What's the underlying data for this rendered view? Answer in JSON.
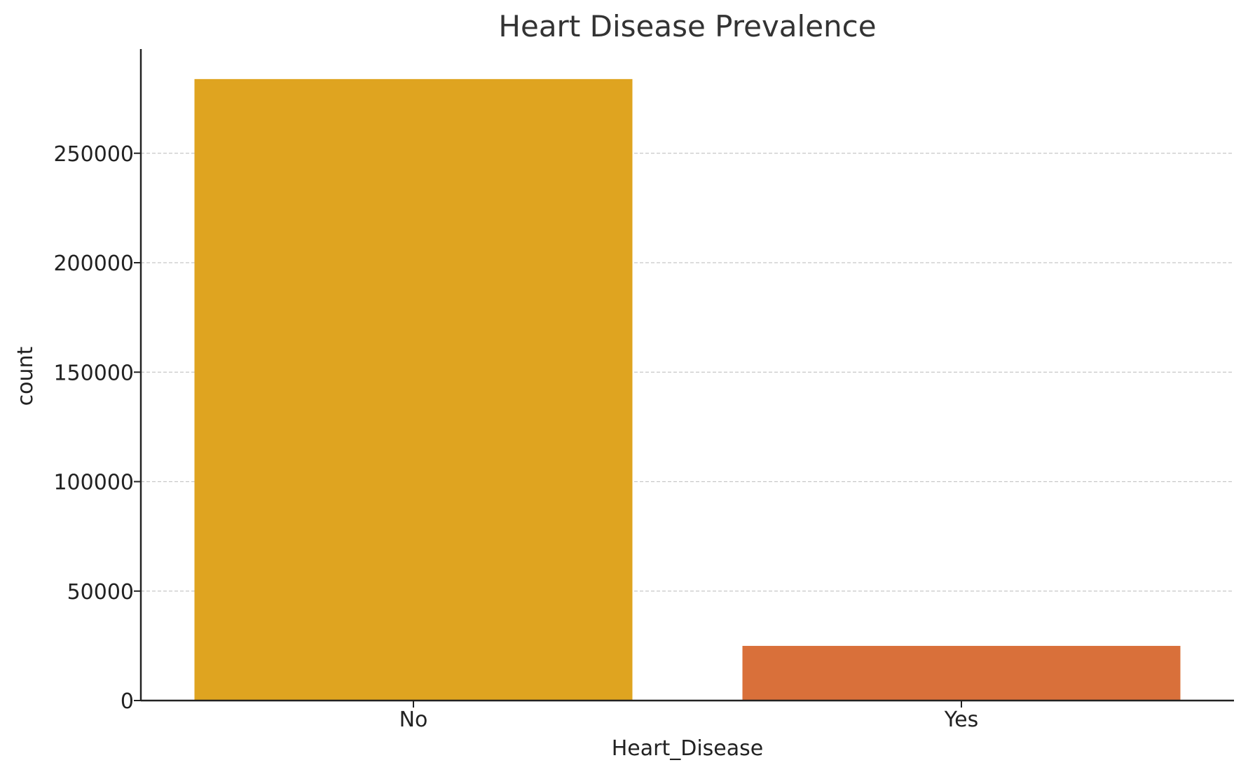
{
  "chart_data": {
    "type": "bar",
    "title": "Heart Disease Prevalence",
    "xlabel": "Heart_Disease",
    "ylabel": "count",
    "categories": [
      "No",
      "Yes"
    ],
    "values": [
      283883,
      24971
    ],
    "colors": [
      "#DFA420",
      "#D9703A"
    ],
    "ylim": [
      0,
      298000
    ],
    "yticks": [
      0,
      50000,
      100000,
      150000,
      200000,
      250000
    ],
    "ytick_labels": [
      "0",
      "50000",
      "100000",
      "150000",
      "200000",
      "250000"
    ],
    "grid": "horizontal dashed",
    "legend": "none"
  },
  "style": {
    "grid_color": "#c8c8c8",
    "axis_color": "#222222",
    "text_color": "#222222",
    "title_color": "#333333"
  }
}
